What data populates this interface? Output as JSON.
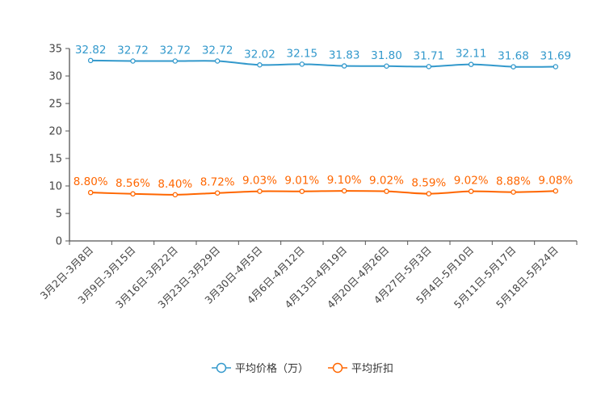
{
  "chart_data": {
    "type": "line",
    "categories": [
      "3月2日-3月8日",
      "3月9日-3月15日",
      "3月16日-3月22日",
      "3月23日-3月29日",
      "3月30日-4月5日",
      "4月6日-4月12日",
      "4月13日-4月19日",
      "4月20日-4月26日",
      "4月27日-5月3日",
      "5月4日-5月10日",
      "5月11日-5月17日",
      "5月18日-5月24日"
    ],
    "series": [
      {
        "name": "平均价格（万）",
        "color": "#3399CC",
        "values": [
          32.82,
          32.72,
          32.72,
          32.72,
          32.02,
          32.15,
          31.83,
          31.8,
          31.71,
          32.11,
          31.68,
          31.69
        ],
        "labels": [
          "32.82",
          "32.72",
          "32.72",
          "32.72",
          "32.02",
          "32.15",
          "31.83",
          "31.80",
          "31.71",
          "32.11",
          "31.68",
          "31.69"
        ]
      },
      {
        "name": "平均折扣",
        "color": "#FF6600",
        "values": [
          8.8,
          8.56,
          8.4,
          8.72,
          9.03,
          9.01,
          9.1,
          9.02,
          8.59,
          9.02,
          8.88,
          9.08
        ],
        "labels": [
          "8.80%",
          "8.56%",
          "8.40%",
          "8.72%",
          "9.03%",
          "9.01%",
          "9.10%",
          "9.02%",
          "8.59%",
          "9.02%",
          "8.88%",
          "9.08%"
        ]
      }
    ],
    "ylim": [
      0,
      35
    ],
    "yticks": [
      "0",
      "5",
      "10",
      "15",
      "20",
      "25",
      "30",
      "35"
    ],
    "legend_position": "bottom-center",
    "grid": false
  }
}
